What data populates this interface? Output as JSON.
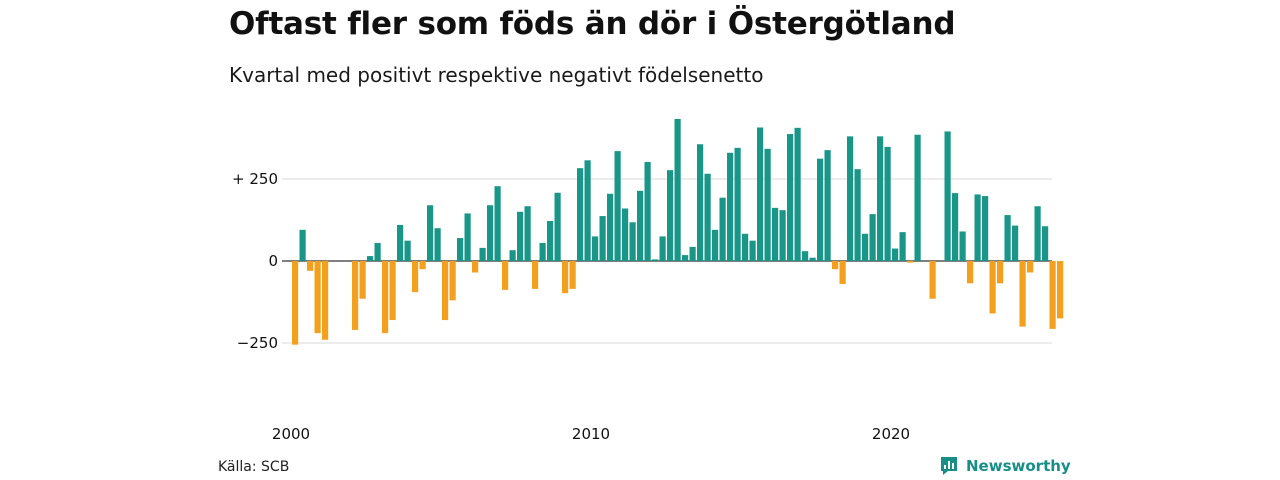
{
  "header": {
    "title": "Oftast fler som föds än dör i Östergötland",
    "subtitle": "Kvartal med positivt respektive negativt födelsenetto"
  },
  "footer": {
    "source": "Källa: SCB",
    "brand": "Newsworthy",
    "brand_icon": "newsworthy-logo-icon"
  },
  "colors": {
    "positive": "#1a9688",
    "negative": "#f2a01e",
    "grid": "#d9d9d9",
    "axis_text": "#111111"
  },
  "chart_data": {
    "type": "bar",
    "x_start_year": 2000,
    "periods_per_year": 4,
    "y_ticks": [
      -250,
      0,
      250
    ],
    "y_tick_labels": [
      "−250",
      "0",
      "+ 250"
    ],
    "x_tick_labels": [
      "2000",
      "2010",
      "2020"
    ],
    "ylim": [
      -350,
      430
    ],
    "grid": true,
    "title": "",
    "xlabel": "",
    "ylabel": "",
    "values": [
      -255,
      95,
      -30,
      -220,
      -240,
      0,
      0,
      0,
      -210,
      -115,
      15,
      55,
      -220,
      -180,
      110,
      62,
      -95,
      -25,
      170,
      100,
      -180,
      -120,
      70,
      145,
      -35,
      40,
      170,
      228,
      -88,
      33,
      150,
      167,
      -85,
      55,
      122,
      208,
      -98,
      -85,
      283,
      307,
      75,
      137,
      205,
      335,
      160,
      118,
      214,
      302,
      5,
      75,
      277,
      433,
      18,
      43,
      356,
      266,
      95,
      193,
      330,
      345,
      83,
      62,
      407,
      342,
      162,
      155,
      387,
      406,
      30,
      10,
      312,
      338,
      -25,
      -70,
      380,
      280,
      83,
      143,
      380,
      348,
      38,
      88,
      -5,
      385,
      0,
      -115,
      0,
      395,
      207,
      90,
      -68,
      203,
      198,
      -160,
      -68,
      140,
      108,
      -200,
      -35,
      167,
      106,
      -207,
      -175
    ]
  }
}
